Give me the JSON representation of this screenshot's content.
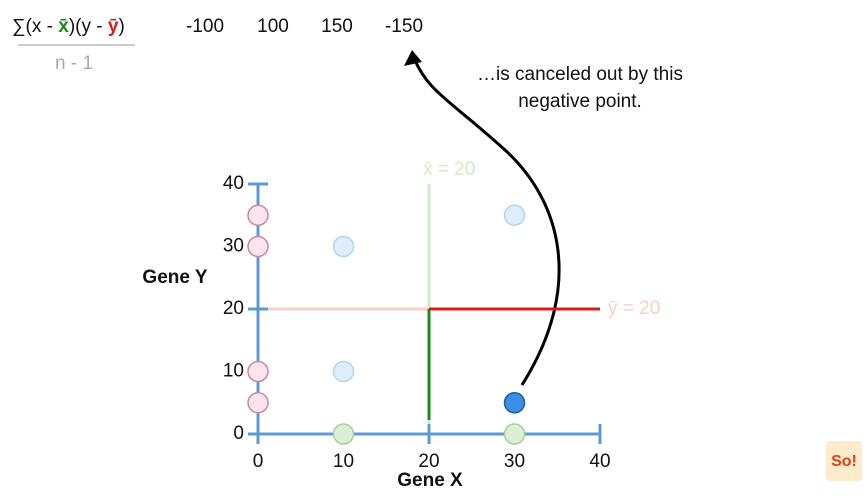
{
  "formula": {
    "numerator": [
      "∑(x - ",
      "x̄",
      ")(y - ",
      "ȳ",
      ")"
    ],
    "denominator": "n - 1"
  },
  "products": [
    -100,
    100,
    150,
    -150
  ],
  "annotation": [
    "…is canceled out by this",
    "negative point."
  ],
  "logo": "So!",
  "chart_data": {
    "type": "scatter",
    "xlabel": "Gene X",
    "ylabel": "Gene Y",
    "xlim": [
      0,
      40
    ],
    "ylim": [
      0,
      40
    ],
    "xticks": [
      0,
      10,
      20,
      30,
      40
    ],
    "yticks": [
      0,
      10,
      20,
      30,
      40
    ],
    "axis_color": "#5b9bd5",
    "series": [
      {
        "color": "#fbe4ee",
        "x": [
          0,
          0,
          0,
          0
        ],
        "y": [
          35,
          30,
          10,
          5
        ]
      },
      {
        "color": "#deedfa",
        "x": [
          10,
          10,
          30
        ],
        "y": [
          30,
          10,
          35
        ]
      },
      {
        "color": "#dcefd6",
        "x": [
          10,
          30
        ],
        "y": [
          0,
          0
        ]
      },
      {
        "color": "#3d8fe6",
        "x": [
          30
        ],
        "y": [
          5
        ]
      }
    ],
    "x_mean": {
      "value": 20,
      "label": "x̄ = 20",
      "color": "#d3e8cc",
      "highlight": "#1a8a1a"
    },
    "y_mean": {
      "value": 20,
      "label": "ȳ = 20",
      "color": "#f6cfc6",
      "highlight": "#d0201a"
    }
  }
}
